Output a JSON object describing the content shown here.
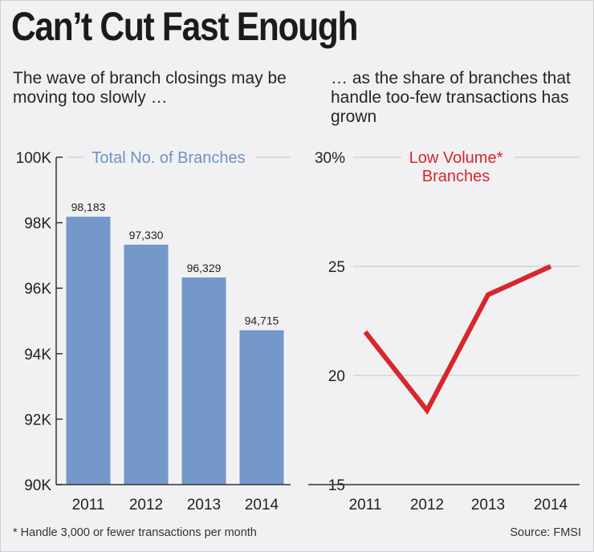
{
  "title": "Can’t Cut Fast Enough",
  "subtitle_left": "The wave of branch closings may be moving too slowly …",
  "subtitle_right": "… as the share of branches that handle too-few transactions has grown",
  "footnote": "* Handle 3,000 or fewer transactions per month",
  "source": "Source: FMSI",
  "colors": {
    "bar": "#7398c9",
    "line": "#d8262c",
    "legend_blue": "#6e93c3",
    "legend_red": "#d8262c"
  },
  "chart_data": [
    {
      "type": "bar",
      "legend_label": "Total No. of Branches",
      "categories": [
        "2011",
        "2012",
        "2013",
        "2014"
      ],
      "values": [
        98183,
        97330,
        96329,
        94715
      ],
      "data_labels": [
        "98,183",
        "97,330",
        "96,329",
        "94,715"
      ],
      "ylim": [
        90000,
        100000
      ],
      "y_ticks": [
        90000,
        92000,
        94000,
        96000,
        98000,
        100000
      ],
      "y_tick_labels": [
        "90K",
        "92K",
        "94K",
        "96K",
        "98K",
        "100K"
      ]
    },
    {
      "type": "line",
      "legend_label_line1": "Low Volume*",
      "legend_label_line2": "Branches",
      "categories": [
        "2011",
        "2012",
        "2013",
        "2014"
      ],
      "values": [
        22,
        18.4,
        23.7,
        25
      ],
      "ylim": [
        15,
        30
      ],
      "y_ticks": [
        15,
        20,
        25,
        30
      ],
      "y_tick_labels": [
        "15",
        "20",
        "25",
        "30%"
      ]
    }
  ]
}
